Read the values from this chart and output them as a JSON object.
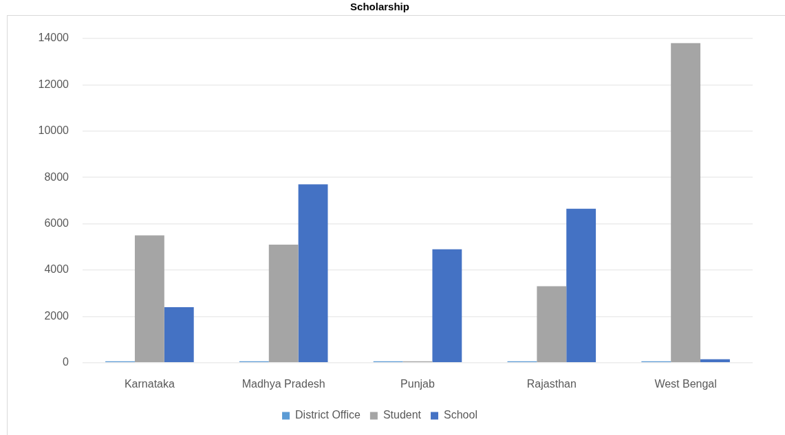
{
  "chart_data": {
    "type": "bar",
    "title": "Scholarship",
    "categories": [
      "Karnataka",
      "Madhya Pradesh",
      "Punjab",
      "Rajasthan",
      "West Bengal"
    ],
    "series": [
      {
        "name": "District Office",
        "color": "#5b9bd5",
        "values": [
          0,
          0,
          0,
          0,
          0
        ]
      },
      {
        "name": "Student",
        "color": "#a5a5a5",
        "values": [
          5500,
          5100,
          0,
          3300,
          13800
        ]
      },
      {
        "name": "School",
        "color": "#4472c4",
        "values": [
          2400,
          7700,
          4900,
          6650,
          150
        ]
      }
    ],
    "ylim": [
      0,
      14000
    ],
    "yticks": [
      0,
      2000,
      4000,
      6000,
      8000,
      10000,
      12000,
      14000
    ],
    "grid": "y",
    "legend": "bottom"
  }
}
